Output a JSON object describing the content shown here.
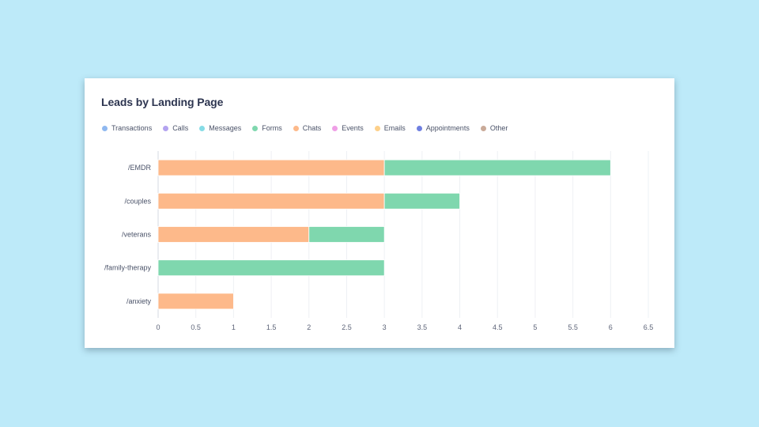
{
  "title": "Leads by Landing Page",
  "legend": [
    {
      "label": "Transactions",
      "color": "#8fb8f0"
    },
    {
      "label": "Calls",
      "color": "#b3a3f0"
    },
    {
      "label": "Messages",
      "color": "#86dce6"
    },
    {
      "label": "Forms",
      "color": "#7fd7ae"
    },
    {
      "label": "Chats",
      "color": "#fdb98a"
    },
    {
      "label": "Events",
      "color": "#ef9fe6"
    },
    {
      "label": "Emails",
      "color": "#fdd08a"
    },
    {
      "label": "Appointments",
      "color": "#6f7fe0"
    },
    {
      "label": "Other",
      "color": "#c9aa98"
    }
  ],
  "chart_data": {
    "type": "bar",
    "orientation": "horizontal",
    "stacked": true,
    "categories": [
      "/EMDR",
      "/couples",
      "/veterans",
      "/family-therapy",
      "/anxiety"
    ],
    "series": [
      {
        "name": "Chats",
        "color": "#fdb98a",
        "values": [
          3,
          3,
          2,
          0,
          1
        ]
      },
      {
        "name": "Forms",
        "color": "#7fd7ae",
        "values": [
          3,
          1,
          1,
          3,
          0
        ]
      }
    ],
    "xlim": [
      0,
      6.5
    ],
    "xticks": [
      "0",
      "0.5",
      "1",
      "1.5",
      "2",
      "2.5",
      "3",
      "3.5",
      "4",
      "4.5",
      "5",
      "5.5",
      "6",
      "6.5"
    ],
    "grid": true,
    "legend_position": "top-left"
  }
}
